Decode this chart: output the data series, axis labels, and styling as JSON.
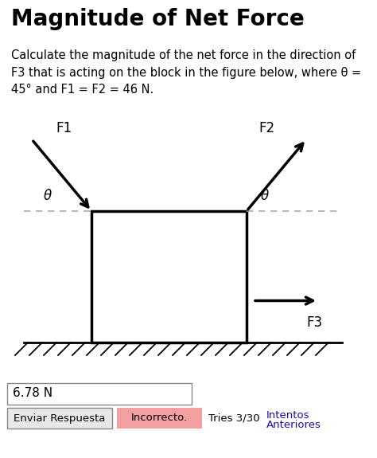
{
  "title": "Magnitude of Net Force",
  "title_fontsize": 20,
  "title_fontweight": "bold",
  "description": "Calculate the magnitude of the net force in the direction of\nF3 that is acting on the block in the figure below, where θ =\n45° and F1 = F2 = 46 N.",
  "desc_fontsize": 10.5,
  "background_color": "#ffffff",
  "box_color": "#000000",
  "arrow_color": "#000000",
  "dashed_color": "#aaaaaa",
  "hatch_color": "#000000",
  "label_F1": "F1",
  "label_F2": "F2",
  "label_F3": "F3",
  "label_theta": "θ",
  "answer_text": "6.78 N",
  "button_text": "Enviar Respuesta",
  "incorrect_text": "Incorrecto.",
  "tries_text": "Tries 3/30",
  "link_text": "Intentos\nAnteriores",
  "incorrect_bg": "#f4a0a0",
  "button_border": "#888888",
  "link_color": "#1a0dab"
}
